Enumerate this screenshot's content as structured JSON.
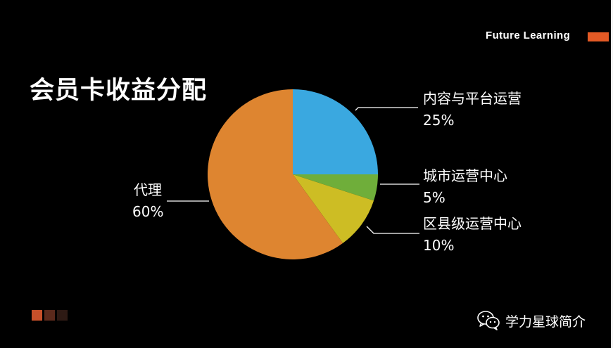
{
  "brand": {
    "text": "Future Learning",
    "accent_color": "#E35A25"
  },
  "slide_title": "会员卡收益分配",
  "chart_data": {
    "type": "pie",
    "title": "会员卡收益分配",
    "slices": [
      {
        "label": "内容与平台运营",
        "value": 25,
        "value_label": "25%",
        "color": "#3AA8E0"
      },
      {
        "label": "城市运营中心",
        "value": 5,
        "value_label": "5%",
        "color": "#6FAE3A"
      },
      {
        "label": "区县级运营中心",
        "value": 10,
        "value_label": "10%",
        "color": "#CDBD24"
      },
      {
        "label": "代理",
        "value": 60,
        "value_label": "60%",
        "color": "#DE8530"
      }
    ]
  },
  "decor": {
    "squares": [
      "#C8502A",
      "#5C2A1C",
      "#2E1A14"
    ]
  },
  "watermark": {
    "icon": "wechat-icon",
    "text": "学力星球简介"
  }
}
